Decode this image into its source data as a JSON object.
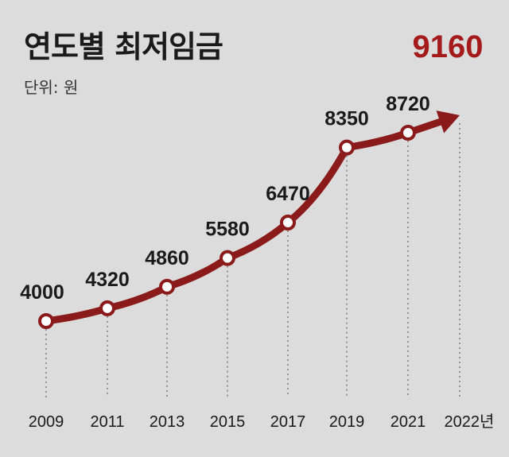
{
  "title": "연도별 최저임금",
  "unit_label": "단위: 원",
  "colors": {
    "line": "#8b1a1a",
    "highlight": "#a51b1b",
    "text": "#1a1a1a",
    "background": "#dcdcdc"
  },
  "chart_data": {
    "type": "line",
    "title": "연도별 최저임금",
    "unit": "원",
    "x": [
      "2009",
      "2011",
      "2013",
      "2015",
      "2017",
      "2019",
      "2021",
      "2022년"
    ],
    "values": [
      4000,
      4320,
      4860,
      5580,
      6470,
      8350,
      8720,
      9160
    ],
    "value_labels": [
      "4000",
      "4320",
      "4860",
      "5580",
      "6470",
      "8350",
      "8720",
      "9160"
    ],
    "grid": false,
    "legend": "none",
    "last_point_style": "arrow"
  }
}
